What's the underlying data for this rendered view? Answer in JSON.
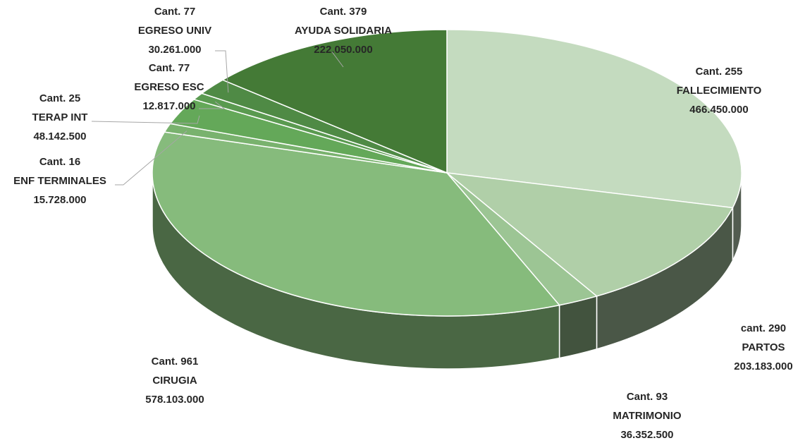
{
  "chart_data": {
    "type": "pie",
    "categories": [
      "FALLECIMIENTO",
      "PARTOS",
      "MATRIMONIO",
      "CIRUGIA",
      "ENF TERMINALES",
      "TERAP INT",
      "EGRESO ESC",
      "EGRESO UNIV",
      "AYUDA SOLIDARIA"
    ],
    "count_labels": [
      "Cant. 255",
      "cant. 290",
      "Cant. 93",
      "Cant. 961",
      "Cant. 16",
      "Cant. 25",
      "Cant. 77",
      "Cant. 77",
      "Cant. 379"
    ],
    "values": [
      466450000,
      203183000,
      36352500,
      578103000,
      15728000,
      48142500,
      12817000,
      30261000,
      222050000
    ],
    "value_labels": [
      "466.450.000",
      "203.183.000",
      "36.352.500",
      "578.103.000",
      "15.728.000",
      "48.142.500",
      "12.817.000",
      "30.261.000",
      "222.050.000"
    ],
    "colors": [
      "#c4dbbf",
      "#b0cfa8",
      "#9cc594",
      "#86bb7c",
      "#79b26e",
      "#64a859",
      "#5a9a50",
      "#4f8a45",
      "#447a36"
    ]
  }
}
